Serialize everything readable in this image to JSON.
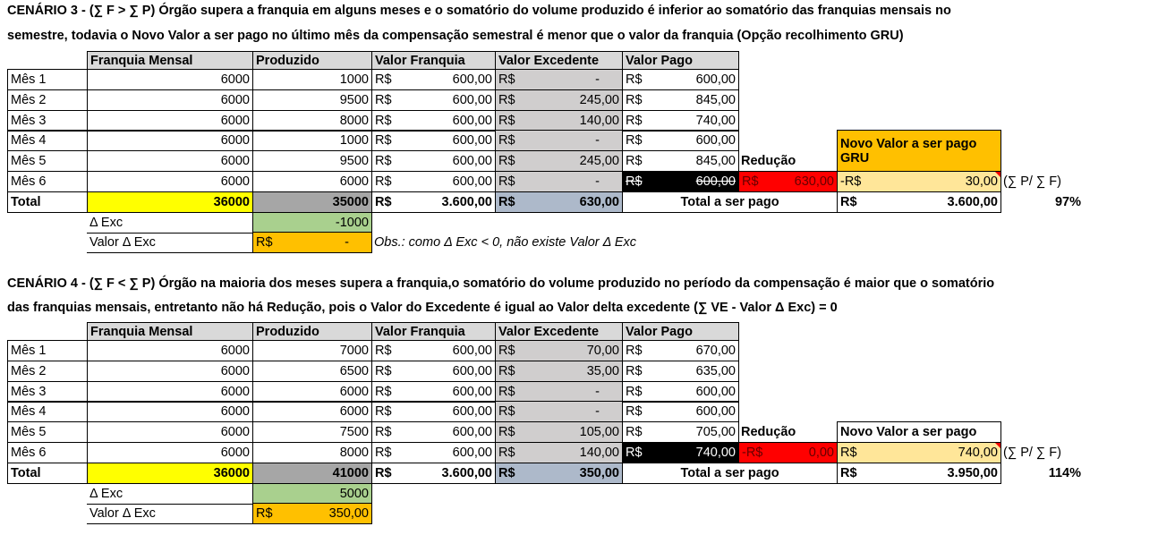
{
  "colors": {
    "header": "#d9d9d9",
    "excedente": "#d0cece",
    "total_franquia": "#ffff00",
    "total_produzido": "#a6a6a6",
    "total_excedente": "#adb9ca",
    "delta_exc": "#a9d08e",
    "valor_delta": "#ffc000",
    "reducao": "#ff0000",
    "novo_valor": "#ffe699",
    "novo_header_gru": "#ffc000",
    "pago_mes6": "#000000"
  },
  "headers": [
    "Franquia Mensal",
    "Produzido",
    "Valor Franquia",
    "Valor Excedente",
    "Valor Pago"
  ],
  "currency": "R$",
  "scenarios": [
    {
      "title": [
        "CENÁRIO 3 - (∑ F > ∑ P) Órgão supera a franquia em alguns meses e o somatório do volume produzido é inferior ao somatório das franquias mensais no",
        "semestre, todavia o Novo Valor a ser pago no último mês da compensação semestral é menor que o valor da franquia (Opção recolhimento GRU)"
      ],
      "months": [
        {
          "label": "Mês 1",
          "franquia": "6000",
          "produzido": "1000",
          "vf": "600,00",
          "ve": "-",
          "vp": "600,00"
        },
        {
          "label": "Mês 2",
          "franquia": "6000",
          "produzido": "9500",
          "vf": "600,00",
          "ve": "245,00",
          "vp": "845,00"
        },
        {
          "label": "Mês 3",
          "franquia": "6000",
          "produzido": "8000",
          "vf": "600,00",
          "ve": "140,00",
          "vp": "740,00"
        },
        {
          "label": "Mês 4",
          "franquia": "6000",
          "produzido": "1000",
          "vf": "600,00",
          "ve": "-",
          "vp": "600,00"
        },
        {
          "label": "Mês 5",
          "franquia": "6000",
          "produzido": "9500",
          "vf": "600,00",
          "ve": "245,00",
          "vp": "845,00"
        },
        {
          "label": "Mês 6",
          "franquia": "6000",
          "produzido": "6000",
          "vf": "600,00",
          "ve": "-",
          "vp": "600,00"
        }
      ],
      "vp6_struck": true,
      "total": {
        "label": "Total",
        "franquia": "36000",
        "produzido": "35000",
        "vf": "3.600,00",
        "ve": "630,00"
      },
      "delta_label": "Δ Exc",
      "delta": "-1000",
      "valor_delta_label": "Valor Δ Exc",
      "valor_delta": "-",
      "obs": "Obs.: como Δ Exc < 0, não existe Valor Δ Exc",
      "reducao_label": "Redução",
      "reducao_prefix": "R$",
      "reducao": "630,00",
      "novo_label": [
        "Novo Valor a ser pago",
        "GRU"
      ],
      "novo_prefix": "-R$",
      "novo": "30,00",
      "ratio_label": "(∑ P/ ∑ F)",
      "total_pago_label": "Total a ser pago",
      "total_pago": "3.600,00",
      "pct": "97%"
    },
    {
      "title": [
        "CENÁRIO 4 - (∑ F < ∑ P) Órgão na maioria dos meses supera a franquia,o somatório do volume produzido no período da compensação é maior que o somatório",
        "das franquias mensais, entretanto não há Redução, pois o Valor do Excedente é igual ao Valor delta excedente (∑ VE - Valor Δ Exc) = 0"
      ],
      "months": [
        {
          "label": "Mês 1",
          "franquia": "6000",
          "produzido": "7000",
          "vf": "600,00",
          "ve": "70,00",
          "vp": "670,00"
        },
        {
          "label": "Mês 2",
          "franquia": "6000",
          "produzido": "6500",
          "vf": "600,00",
          "ve": "35,00",
          "vp": "635,00"
        },
        {
          "label": "Mês 3",
          "franquia": "6000",
          "produzido": "6000",
          "vf": "600,00",
          "ve": "-",
          "vp": "600,00"
        },
        {
          "label": "Mês 4",
          "franquia": "6000",
          "produzido": "6000",
          "vf": "600,00",
          "ve": "-",
          "vp": "600,00"
        },
        {
          "label": "Mês 5",
          "franquia": "6000",
          "produzido": "7500",
          "vf": "600,00",
          "ve": "105,00",
          "vp": "705,00"
        },
        {
          "label": "Mês 6",
          "franquia": "6000",
          "produzido": "8000",
          "vf": "600,00",
          "ve": "140,00",
          "vp": "740,00"
        }
      ],
      "vp6_struck": false,
      "total": {
        "label": "Total",
        "franquia": "36000",
        "produzido": "41000",
        "vf": "3.600,00",
        "ve": "350,00"
      },
      "delta_label": "Δ Exc",
      "delta": "5000",
      "valor_delta_label": "Valor Δ Exc",
      "valor_delta": "350,00",
      "obs": "",
      "reducao_label": "Redução",
      "reducao_prefix": "-R$",
      "reducao": "0,00",
      "novo_label": [
        "Novo Valor a ser pago"
      ],
      "novo_prefix": "R$",
      "novo": "740,00",
      "ratio_label": "(∑ P/ ∑ F)",
      "total_pago_label": "Total a ser pago",
      "total_pago": "3.950,00",
      "pct": "114%"
    }
  ]
}
